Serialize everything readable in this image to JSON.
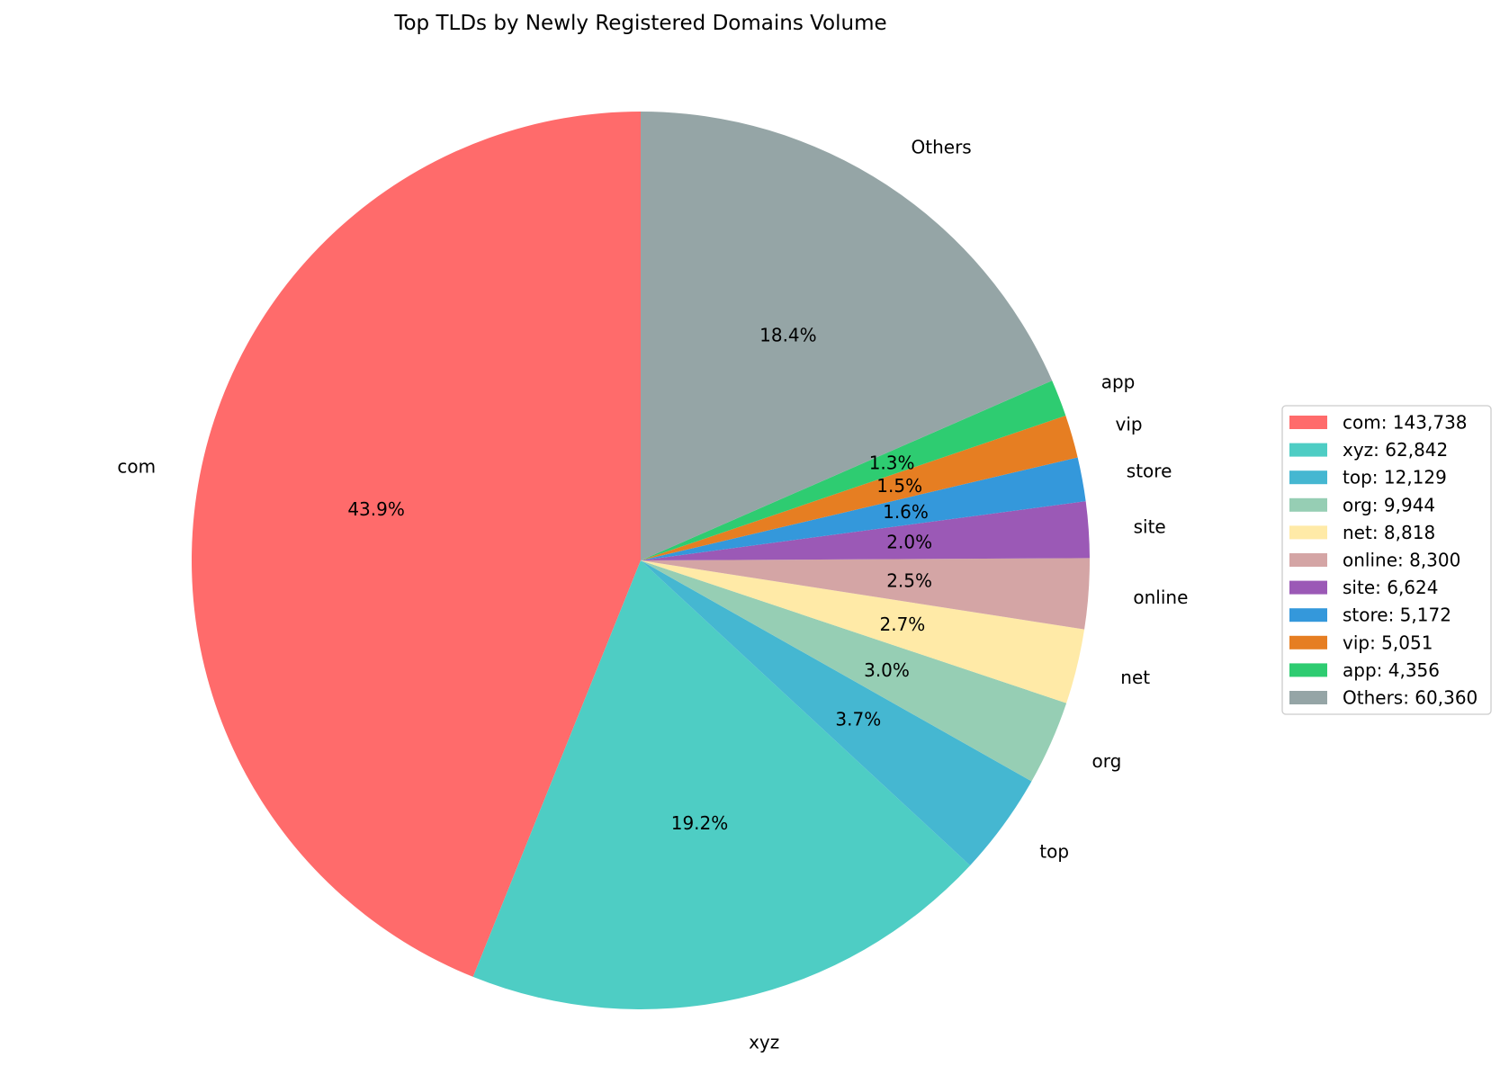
{
  "chart_data": {
    "type": "pie",
    "title": "Top TLDs by Newly Registered Domains Volume",
    "start_angle_deg": 90,
    "direction": "counterclockwise",
    "legend_position": "right",
    "slices": [
      {
        "label": "com",
        "value": 143738,
        "percent_label": "43.9%",
        "legend": "com: 143,738",
        "color": "#ff6b6b"
      },
      {
        "label": "xyz",
        "value": 62842,
        "percent_label": "19.2%",
        "legend": "xyz: 62,842",
        "color": "#4ecdc4"
      },
      {
        "label": "top",
        "value": 12129,
        "percent_label": "3.7%",
        "legend": "top: 12,129",
        "color": "#45b7d1"
      },
      {
        "label": "org",
        "value": 9944,
        "percent_label": "3.0%",
        "legend": "org: 9,944",
        "color": "#96ceb4"
      },
      {
        "label": "net",
        "value": 8818,
        "percent_label": "2.7%",
        "legend": "net: 8,818",
        "color": "#ffeaa7"
      },
      {
        "label": "online",
        "value": 8300,
        "percent_label": "2.5%",
        "legend": "online: 8,300",
        "color": "#d4a5a5"
      },
      {
        "label": "site",
        "value": 6624,
        "percent_label": "2.0%",
        "legend": "site: 6,624",
        "color": "#9b59b6"
      },
      {
        "label": "store",
        "value": 5172,
        "percent_label": "1.6%",
        "legend": "store: 5,172",
        "color": "#3498db"
      },
      {
        "label": "vip",
        "value": 5051,
        "percent_label": "1.5%",
        "legend": "vip: 5,051",
        "color": "#e67e22"
      },
      {
        "label": "app",
        "value": 4356,
        "percent_label": "1.3%",
        "legend": "app: 4,356",
        "color": "#2ecc71"
      },
      {
        "label": "Others",
        "value": 60360,
        "percent_label": "18.4%",
        "legend": "Others: 60,360",
        "color": "#95a5a6"
      }
    ]
  }
}
